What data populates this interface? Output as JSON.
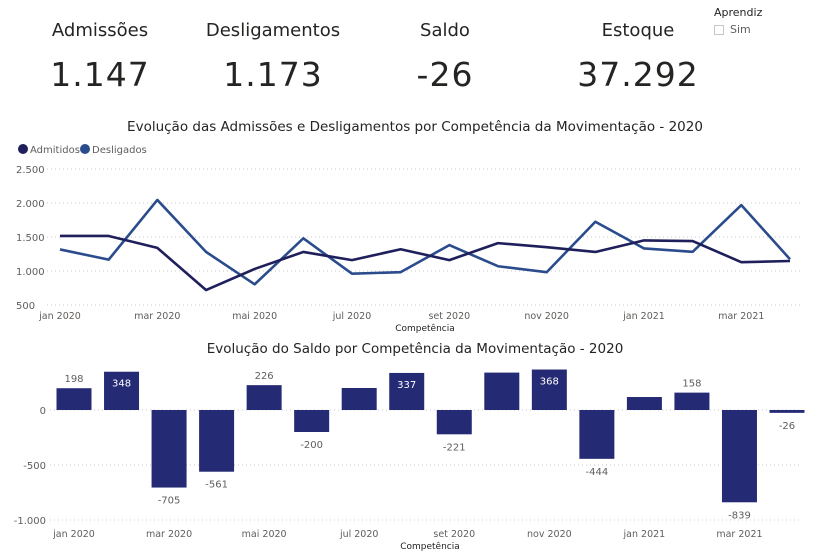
{
  "kpis": [
    {
      "label": "Admissões",
      "value": "1.147"
    },
    {
      "label": "Desligamentos",
      "value": "1.173"
    },
    {
      "label": "Saldo",
      "value": "-26"
    },
    {
      "label": "Estoque",
      "value": "37.292"
    }
  ],
  "slicer": {
    "title": "Aprendiz",
    "options": [
      {
        "label": "Sim",
        "checked": false
      }
    ]
  },
  "colors": {
    "admitidos": "#1f1f5c",
    "desligados": "#2b4c8c",
    "bar": "#252a75",
    "grid": "#c8c8c8",
    "text": "#252423",
    "axis_text": "#605e5c"
  },
  "chart_data": [
    {
      "type": "line",
      "title": "Evolução das Admissões e Desligamentos por Competência da Movimentação - 2020",
      "xlabel": "Competência",
      "ylabel": "",
      "ylim": [
        500,
        2500
      ],
      "yticks": [
        500,
        1000,
        1500,
        2000,
        2500
      ],
      "ytick_labels": [
        "500",
        "1.000",
        "1.500",
        "2.000",
        "2.500"
      ],
      "grid": true,
      "legend": "top-left",
      "x": [
        "jan 2020",
        "fev 2020",
        "mar 2020",
        "abr 2020",
        "mai 2020",
        "jun 2020",
        "jul 2020",
        "ago 2020",
        "set 2020",
        "out 2020",
        "nov 2020",
        "dez 2020",
        "jan 2021",
        "fev 2021",
        "mar 2021",
        "abr 2021"
      ],
      "xtick_labels": [
        "jan 2020",
        "",
        "mar 2020",
        "",
        "mai 2020",
        "",
        "jul 2020",
        "",
        "set 2020",
        "",
        "nov 2020",
        "",
        "jan 2021",
        "",
        "mar 2021",
        ""
      ],
      "series": [
        {
          "name": "Admitidos",
          "values": [
            1515,
            1515,
            1340,
            720,
            1030,
            1280,
            1160,
            1320,
            1160,
            1410,
            1350,
            1280,
            1450,
            1440,
            1130,
            1147
          ]
        },
        {
          "name": "Desligados",
          "values": [
            1317,
            1167,
            2045,
            1281,
            804,
            1480,
            960,
            983,
            1381,
            1070,
            982,
            1724,
            1332,
            1282,
            1969,
            1173
          ]
        }
      ]
    },
    {
      "type": "bar",
      "title": "Evolução do Saldo por Competência da Movimentação - 2020",
      "xlabel": "Competência",
      "ylabel": "",
      "ylim": [
        -1000,
        400
      ],
      "yticks": [
        -1000,
        -500,
        0
      ],
      "ytick_labels": [
        "-1.000",
        "-500",
        "0"
      ],
      "grid": true,
      "categories": [
        "jan 2020",
        "fev 2020",
        "mar 2020",
        "abr 2020",
        "mai 2020",
        "jun 2020",
        "jul 2020",
        "ago 2020",
        "set 2020",
        "out 2020",
        "nov 2020",
        "dez 2020",
        "jan 2021",
        "fev 2021",
        "mar 2021",
        "abr 2021"
      ],
      "xtick_labels": [
        "jan 2020",
        "",
        "mar 2020",
        "",
        "mai 2020",
        "",
        "jul 2020",
        "",
        "set 2020",
        "",
        "nov 2020",
        "",
        "jan 2021",
        "",
        "mar 2021",
        ""
      ],
      "values": [
        198,
        348,
        -705,
        -561,
        226,
        -200,
        200,
        337,
        -221,
        340,
        368,
        -444,
        118,
        158,
        -839,
        -26
      ],
      "data_labels": [
        "198",
        "348",
        "-705",
        "-561",
        "226",
        "-200",
        "",
        "337",
        "-221",
        "",
        "368",
        "-444",
        "",
        "158",
        "-839",
        "-26"
      ]
    }
  ]
}
